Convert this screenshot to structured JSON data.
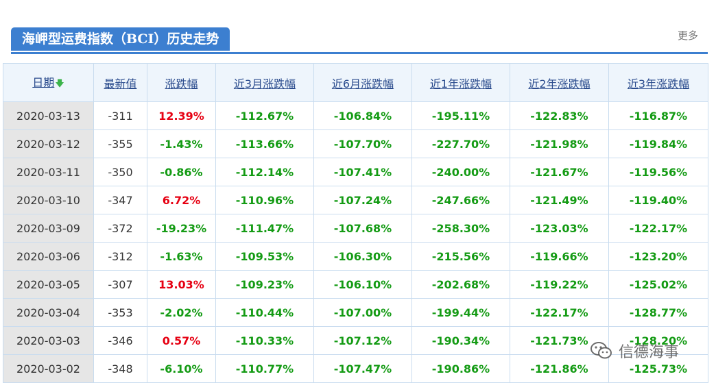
{
  "header": {
    "title": "海岬型运费指数（BCI）历史走势",
    "more_label": "更多"
  },
  "table": {
    "columns": [
      "日期",
      "最新值",
      "涨跌幅",
      "近3月涨跌幅",
      "近6月涨跌幅",
      "近1年涨跌幅",
      "近2年涨跌幅",
      "近3年涨跌幅"
    ],
    "sort_icon": "down-arrow-icon",
    "rows": [
      {
        "date": "2020-03-13",
        "value": "-311",
        "change": "12.39%",
        "m3": "-112.67%",
        "m6": "-106.84%",
        "y1": "-195.11%",
        "y2": "-122.83%",
        "y3": "-116.87%"
      },
      {
        "date": "2020-03-12",
        "value": "-355",
        "change": "-1.43%",
        "m3": "-113.66%",
        "m6": "-107.70%",
        "y1": "-227.70%",
        "y2": "-121.98%",
        "y3": "-119.84%"
      },
      {
        "date": "2020-03-11",
        "value": "-350",
        "change": "-0.86%",
        "m3": "-112.14%",
        "m6": "-107.41%",
        "y1": "-240.00%",
        "y2": "-121.67%",
        "y3": "-119.56%"
      },
      {
        "date": "2020-03-10",
        "value": "-347",
        "change": "6.72%",
        "m3": "-110.96%",
        "m6": "-107.24%",
        "y1": "-247.66%",
        "y2": "-121.49%",
        "y3": "-119.40%"
      },
      {
        "date": "2020-03-09",
        "value": "-372",
        "change": "-19.23%",
        "m3": "-111.47%",
        "m6": "-107.68%",
        "y1": "-258.30%",
        "y2": "-123.03%",
        "y3": "-122.17%"
      },
      {
        "date": "2020-03-06",
        "value": "-312",
        "change": "-1.63%",
        "m3": "-109.53%",
        "m6": "-106.30%",
        "y1": "-215.56%",
        "y2": "-119.66%",
        "y3": "-123.20%"
      },
      {
        "date": "2020-03-05",
        "value": "-307",
        "change": "13.03%",
        "m3": "-109.23%",
        "m6": "-106.10%",
        "y1": "-202.68%",
        "y2": "-119.22%",
        "y3": "-125.02%"
      },
      {
        "date": "2020-03-04",
        "value": "-353",
        "change": "-2.02%",
        "m3": "-110.44%",
        "m6": "-107.00%",
        "y1": "-199.44%",
        "y2": "-122.17%",
        "y3": "-128.77%"
      },
      {
        "date": "2020-03-03",
        "value": "-346",
        "change": "0.57%",
        "m3": "-110.33%",
        "m6": "-107.12%",
        "y1": "-190.34%",
        "y2": "-121.73%",
        "y3": "-128.20%"
      },
      {
        "date": "2020-03-02",
        "value": "-348",
        "change": "-6.10%",
        "m3": "-110.77%",
        "m6": "-107.47%",
        "y1": "-190.86%",
        "y2": "-121.86%",
        "y3": "-125.73%"
      }
    ]
  },
  "watermark": {
    "label": "信德海事",
    "icon": "wechat-icon"
  },
  "colors": {
    "accent": "#3c7fd0",
    "positive": "#e60012",
    "negative": "#149b14",
    "header_bg": "#eef5fc",
    "date_bg": "#e6e6e6",
    "border": "#c9dcef"
  }
}
